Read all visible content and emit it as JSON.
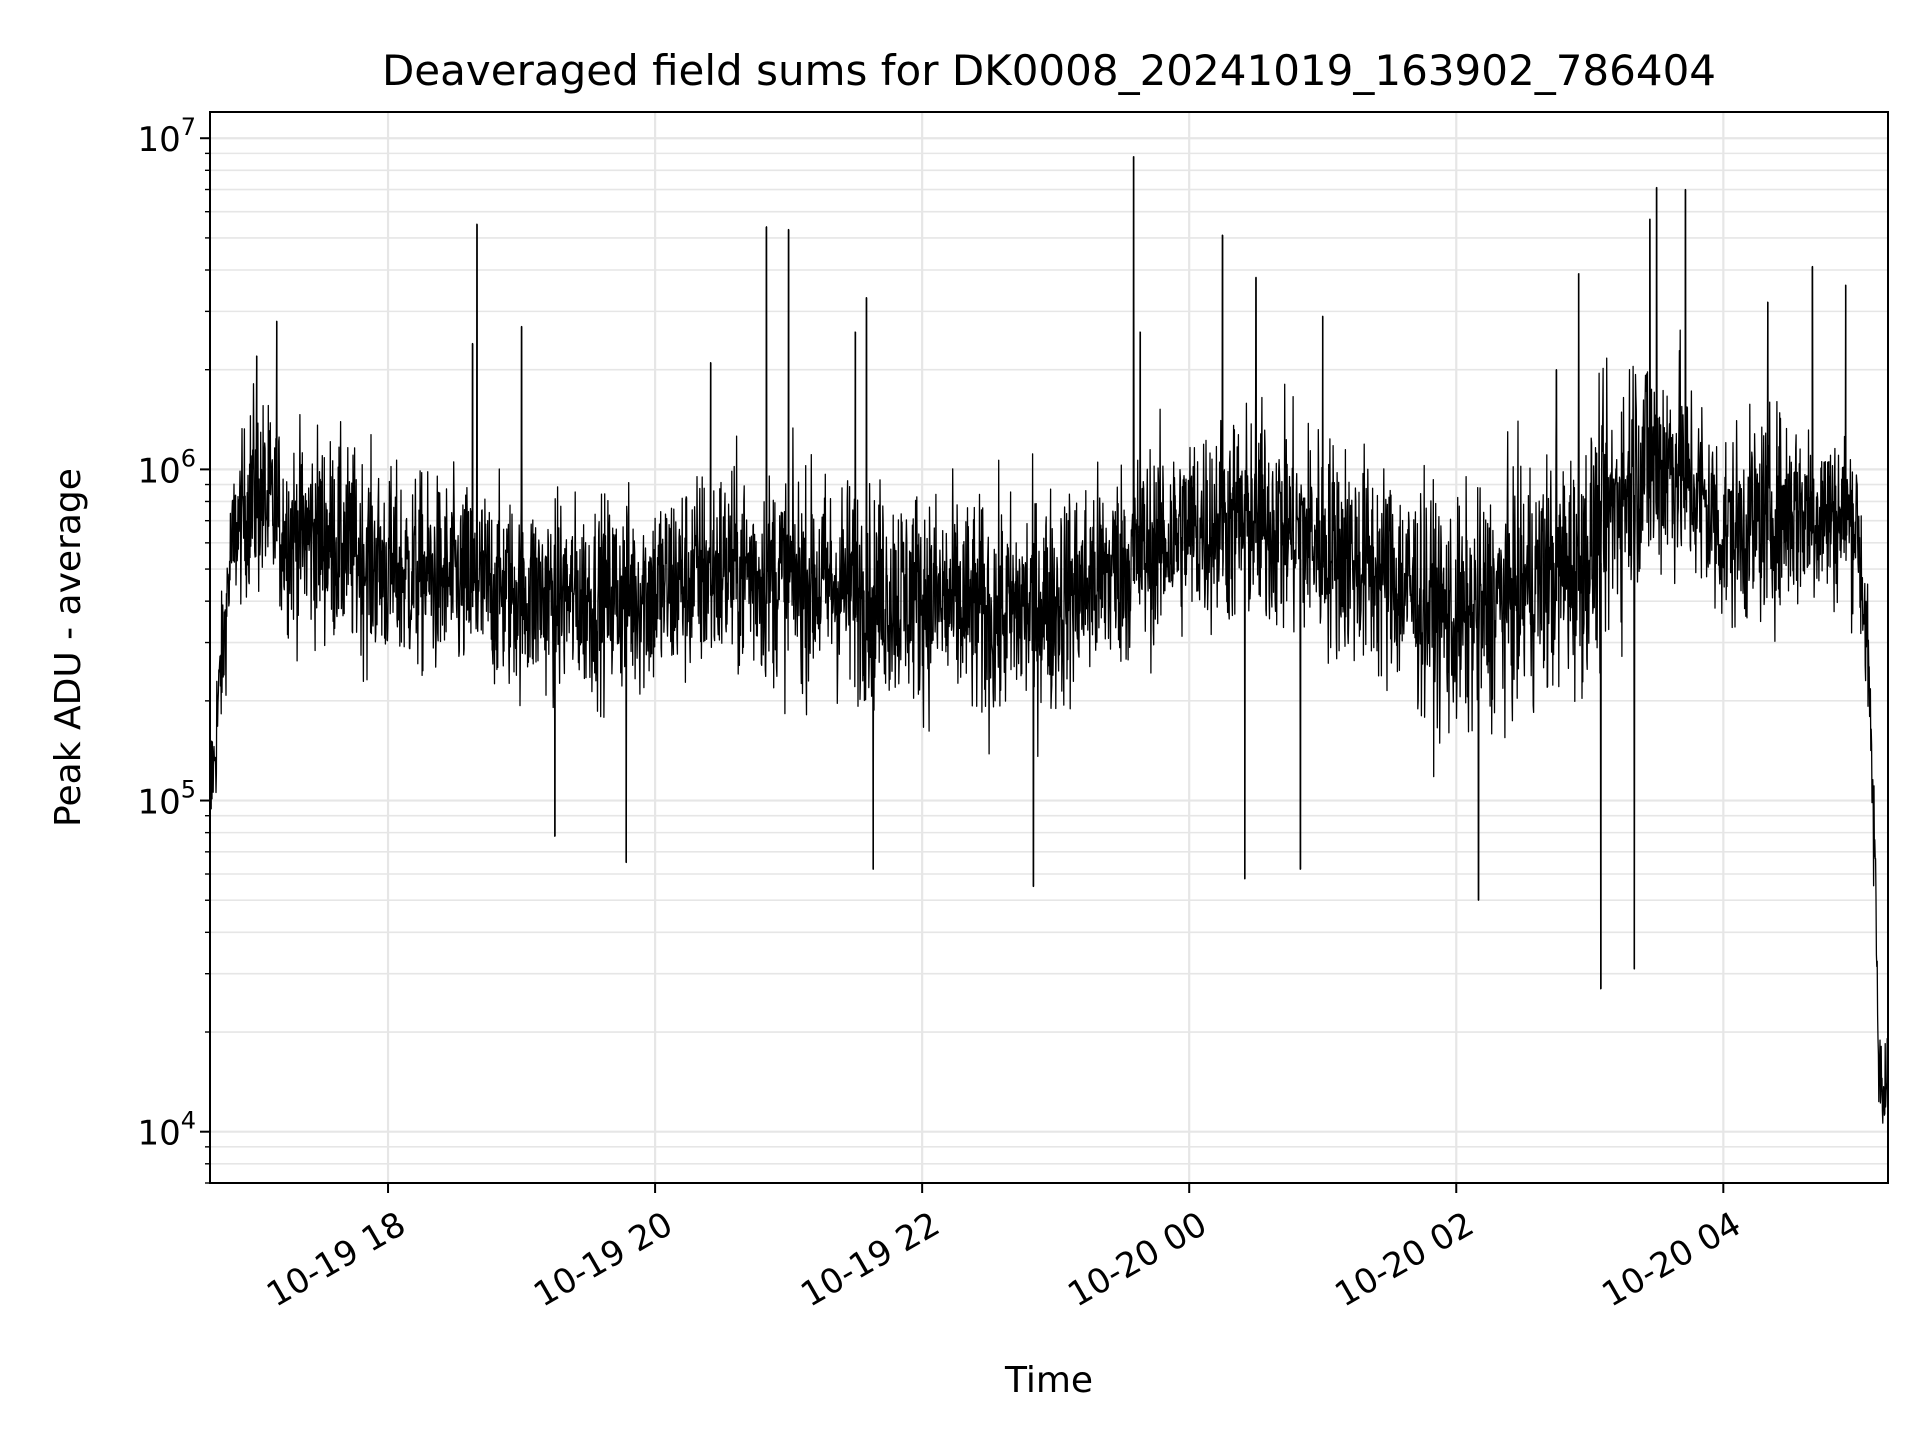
{
  "chart_data": {
    "type": "line",
    "title": "Deaveraged field sums for DK0008_20241019_163902_786404",
    "xlabel": "Time",
    "ylabel": "Peak ADU - average",
    "yscale": "log",
    "ylim": [
      7000,
      12000000
    ],
    "xlim": [
      "2024-10-19 16:40",
      "2024-10-20 05:14"
    ],
    "grid": true,
    "y_tick_labels": [
      {
        "value": 10000,
        "label": "10",
        "exp": "4"
      },
      {
        "value": 100000,
        "label": "10",
        "exp": "5"
      },
      {
        "value": 1000000,
        "label": "10",
        "exp": "6"
      },
      {
        "value": 10000000,
        "label": "10",
        "exp": "7"
      }
    ],
    "x_tick_labels": [
      {
        "value": "2024-10-19 18:00",
        "label": "10-19 18"
      },
      {
        "value": "2024-10-19 20:00",
        "label": "10-19 20"
      },
      {
        "value": "2024-10-19 22:00",
        "label": "10-19 22"
      },
      {
        "value": "2024-10-20 00:00",
        "label": "10-20 00"
      },
      {
        "value": "2024-10-20 02:00",
        "label": "10-20 02"
      },
      {
        "value": "2024-10-20 04:00",
        "label": "10-20 04"
      }
    ],
    "series_color": "#000000",
    "series": [
      {
        "envelope": [
          {
            "t": "2024-10-19 16:40",
            "lo": 55000,
            "hi": 150000
          },
          {
            "t": "2024-10-19 16:50",
            "lo": 330000,
            "hi": 950000
          },
          {
            "t": "2024-10-19 17:00",
            "lo": 250000,
            "hi": 2200000
          },
          {
            "t": "2024-10-19 17:15",
            "lo": 200000,
            "hi": 1500000
          },
          {
            "t": "2024-10-19 17:30",
            "lo": 180000,
            "hi": 1600000
          },
          {
            "t": "2024-10-19 18:00",
            "lo": 150000,
            "hi": 1200000
          },
          {
            "t": "2024-10-19 18:30",
            "lo": 140000,
            "hi": 1100000
          },
          {
            "t": "2024-10-19 19:00",
            "lo": 130000,
            "hi": 1000000
          },
          {
            "t": "2024-10-19 19:30",
            "lo": 130000,
            "hi": 950000
          },
          {
            "t": "2024-10-19 20:00",
            "lo": 120000,
            "hi": 1100000
          },
          {
            "t": "2024-10-19 20:30",
            "lo": 140000,
            "hi": 1300000
          },
          {
            "t": "2024-10-19 21:00",
            "lo": 130000,
            "hi": 1200000
          },
          {
            "t": "2024-10-19 21:30",
            "lo": 110000,
            "hi": 1200000
          },
          {
            "t": "2024-10-19 22:00",
            "lo": 110000,
            "hi": 1100000
          },
          {
            "t": "2024-10-19 22:30",
            "lo": 90000,
            "hi": 1000000
          },
          {
            "t": "2024-10-19 23:00",
            "lo": 100000,
            "hi": 1100000
          },
          {
            "t": "2024-10-19 23:30",
            "lo": 150000,
            "hi": 1300000
          },
          {
            "t": "2024-10-20 00:00",
            "lo": 200000,
            "hi": 1600000
          },
          {
            "t": "2024-10-20 00:30",
            "lo": 180000,
            "hi": 2000000
          },
          {
            "t": "2024-10-20 01:00",
            "lo": 150000,
            "hi": 1700000
          },
          {
            "t": "2024-10-20 01:30",
            "lo": 120000,
            "hi": 1300000
          },
          {
            "t": "2024-10-20 02:00",
            "lo": 80000,
            "hi": 1000000
          },
          {
            "t": "2024-10-20 02:30",
            "lo": 100000,
            "hi": 1300000
          },
          {
            "t": "2024-10-20 03:00",
            "lo": 110000,
            "hi": 1800000
          },
          {
            "t": "2024-10-20 03:20",
            "lo": 200000,
            "hi": 3500000
          },
          {
            "t": "2024-10-20 03:40",
            "lo": 250000,
            "hi": 3000000
          },
          {
            "t": "2024-10-20 04:00",
            "lo": 200000,
            "hi": 1500000
          },
          {
            "t": "2024-10-20 04:30",
            "lo": 220000,
            "hi": 1900000
          },
          {
            "t": "2024-10-20 05:00",
            "lo": 280000,
            "hi": 1400000
          },
          {
            "t": "2024-10-20 05:05",
            "lo": 150000,
            "hi": 400000
          },
          {
            "t": "2024-10-20 05:08",
            "lo": 40000,
            "hi": 100000
          },
          {
            "t": "2024-10-20 05:10",
            "lo": 10000,
            "hi": 20000
          },
          {
            "t": "2024-10-20 05:14",
            "lo": 10000,
            "hi": 17000
          }
        ],
        "spikes": [
          {
            "t": "2024-10-19 17:01",
            "v": 2200000
          },
          {
            "t": "2024-10-19 17:10",
            "v": 2800000
          },
          {
            "t": "2024-10-19 18:40",
            "v": 5500000
          },
          {
            "t": "2024-10-19 18:38",
            "v": 2400000
          },
          {
            "t": "2024-10-19 19:00",
            "v": 2700000
          },
          {
            "t": "2024-10-19 19:15",
            "v": 78000
          },
          {
            "t": "2024-10-19 19:47",
            "v": 65000
          },
          {
            "t": "2024-10-19 20:25",
            "v": 2100000
          },
          {
            "t": "2024-10-19 20:50",
            "v": 5400000
          },
          {
            "t": "2024-10-19 21:00",
            "v": 5300000
          },
          {
            "t": "2024-10-19 21:30",
            "v": 2600000
          },
          {
            "t": "2024-10-19 21:35",
            "v": 3300000
          },
          {
            "t": "2024-10-19 21:38",
            "v": 62000
          },
          {
            "t": "2024-10-19 22:50",
            "v": 55000
          },
          {
            "t": "2024-10-19 23:35",
            "v": 8800000
          },
          {
            "t": "2024-10-19 23:38",
            "v": 2600000
          },
          {
            "t": "2024-10-20 00:15",
            "v": 5100000
          },
          {
            "t": "2024-10-20 00:25",
            "v": 58000
          },
          {
            "t": "2024-10-20 00:30",
            "v": 3800000
          },
          {
            "t": "2024-10-20 00:50",
            "v": 62000
          },
          {
            "t": "2024-10-20 01:00",
            "v": 2900000
          },
          {
            "t": "2024-10-20 02:10",
            "v": 50000
          },
          {
            "t": "2024-10-20 02:45",
            "v": 2000000
          },
          {
            "t": "2024-10-20 02:55",
            "v": 3900000
          },
          {
            "t": "2024-10-20 03:05",
            "v": 27000
          },
          {
            "t": "2024-10-20 03:20",
            "v": 31000
          },
          {
            "t": "2024-10-20 03:27",
            "v": 5700000
          },
          {
            "t": "2024-10-20 03:30",
            "v": 7100000
          },
          {
            "t": "2024-10-20 03:43",
            "v": 7000000
          },
          {
            "t": "2024-10-20 04:20",
            "v": 3200000
          },
          {
            "t": "2024-10-20 04:40",
            "v": 4100000
          },
          {
            "t": "2024-10-20 04:55",
            "v": 3600000
          }
        ]
      }
    ]
  }
}
